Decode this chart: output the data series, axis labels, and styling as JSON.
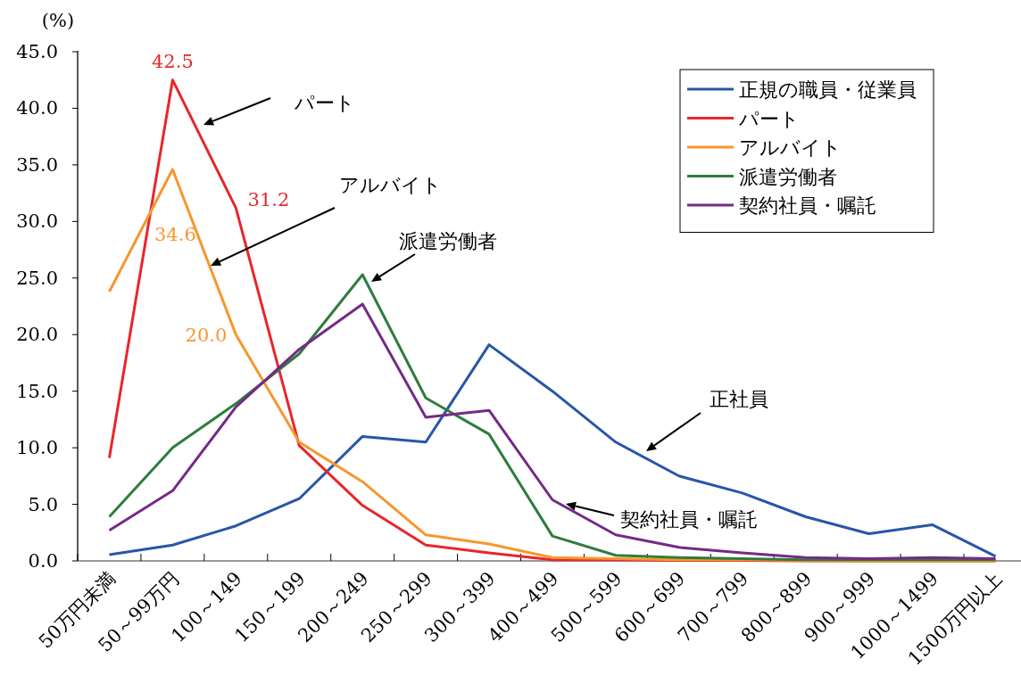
{
  "chart_data": {
    "type": "line",
    "ylabel": "(%)",
    "categories": [
      "50万円未満",
      "50～99万円",
      "100～149",
      "150～199",
      "200～249",
      "250～299",
      "300～399",
      "400～499",
      "500～599",
      "600～699",
      "700～799",
      "800～899",
      "900～999",
      "1000～1499",
      "1500万円以上"
    ],
    "ylim": [
      0,
      45
    ],
    "yticks": [
      {
        "value": 0,
        "label": "0.0"
      },
      {
        "value": 5,
        "label": "5.0"
      },
      {
        "value": 10,
        "label": "10.0"
      },
      {
        "value": 15,
        "label": "15.0"
      },
      {
        "value": 20,
        "label": "20.0"
      },
      {
        "value": 25,
        "label": "25.0"
      },
      {
        "value": 30,
        "label": "30.0"
      },
      {
        "value": 35,
        "label": "35.0"
      },
      {
        "value": 40,
        "label": "40.0"
      },
      {
        "value": 45,
        "label": "45.0"
      }
    ],
    "series": [
      {
        "name": "正規の職員・従業員",
        "color": "#2756a8",
        "values": [
          0.55,
          1.4,
          3.1,
          5.5,
          11.0,
          10.5,
          19.1,
          15.0,
          10.5,
          7.5,
          6.0,
          3.9,
          2.4,
          3.2,
          0.4
        ]
      },
      {
        "name": "パート",
        "color": "#e8262a",
        "values": [
          9.1,
          42.5,
          31.2,
          10.2,
          4.9,
          1.4,
          0.7,
          0.1,
          0.1,
          0.05,
          0.05,
          0.0,
          0.0,
          0.0,
          0.0
        ],
        "value_labels": [
          null,
          "42.5",
          "31.2",
          null,
          null,
          null,
          null,
          null,
          null,
          null,
          null,
          null,
          null,
          null,
          null
        ]
      },
      {
        "name": "アルバイト",
        "color": "#f7962e",
        "values": [
          23.8,
          34.6,
          20.0,
          10.5,
          7.0,
          2.3,
          1.5,
          0.3,
          0.2,
          0.1,
          0.1,
          0.05,
          0.0,
          0.0,
          0.0
        ],
        "value_labels": [
          null,
          "34.6",
          "20.0",
          null,
          null,
          null,
          null,
          null,
          null,
          null,
          null,
          null,
          null,
          null,
          null
        ]
      },
      {
        "name": "派遣労働者",
        "color": "#2e7d3c",
        "values": [
          3.9,
          10.0,
          13.9,
          18.3,
          25.3,
          14.4,
          11.2,
          2.2,
          0.5,
          0.3,
          0.2,
          0.1,
          0.1,
          0.1,
          0.1
        ]
      },
      {
        "name": "契約社員・嘱託",
        "color": "#742a87",
        "values": [
          2.7,
          6.2,
          13.6,
          18.7,
          22.7,
          12.7,
          13.3,
          5.4,
          2.3,
          1.2,
          0.7,
          0.3,
          0.2,
          0.3,
          0.2
        ]
      }
    ],
    "annotations": [
      "パート",
      "アルバイト",
      "派遣労働者",
      "正社員",
      "契約社員・嘱託"
    ],
    "legend": "top right",
    "grid": false,
    "marker": "none",
    "line_style": "solid"
  }
}
